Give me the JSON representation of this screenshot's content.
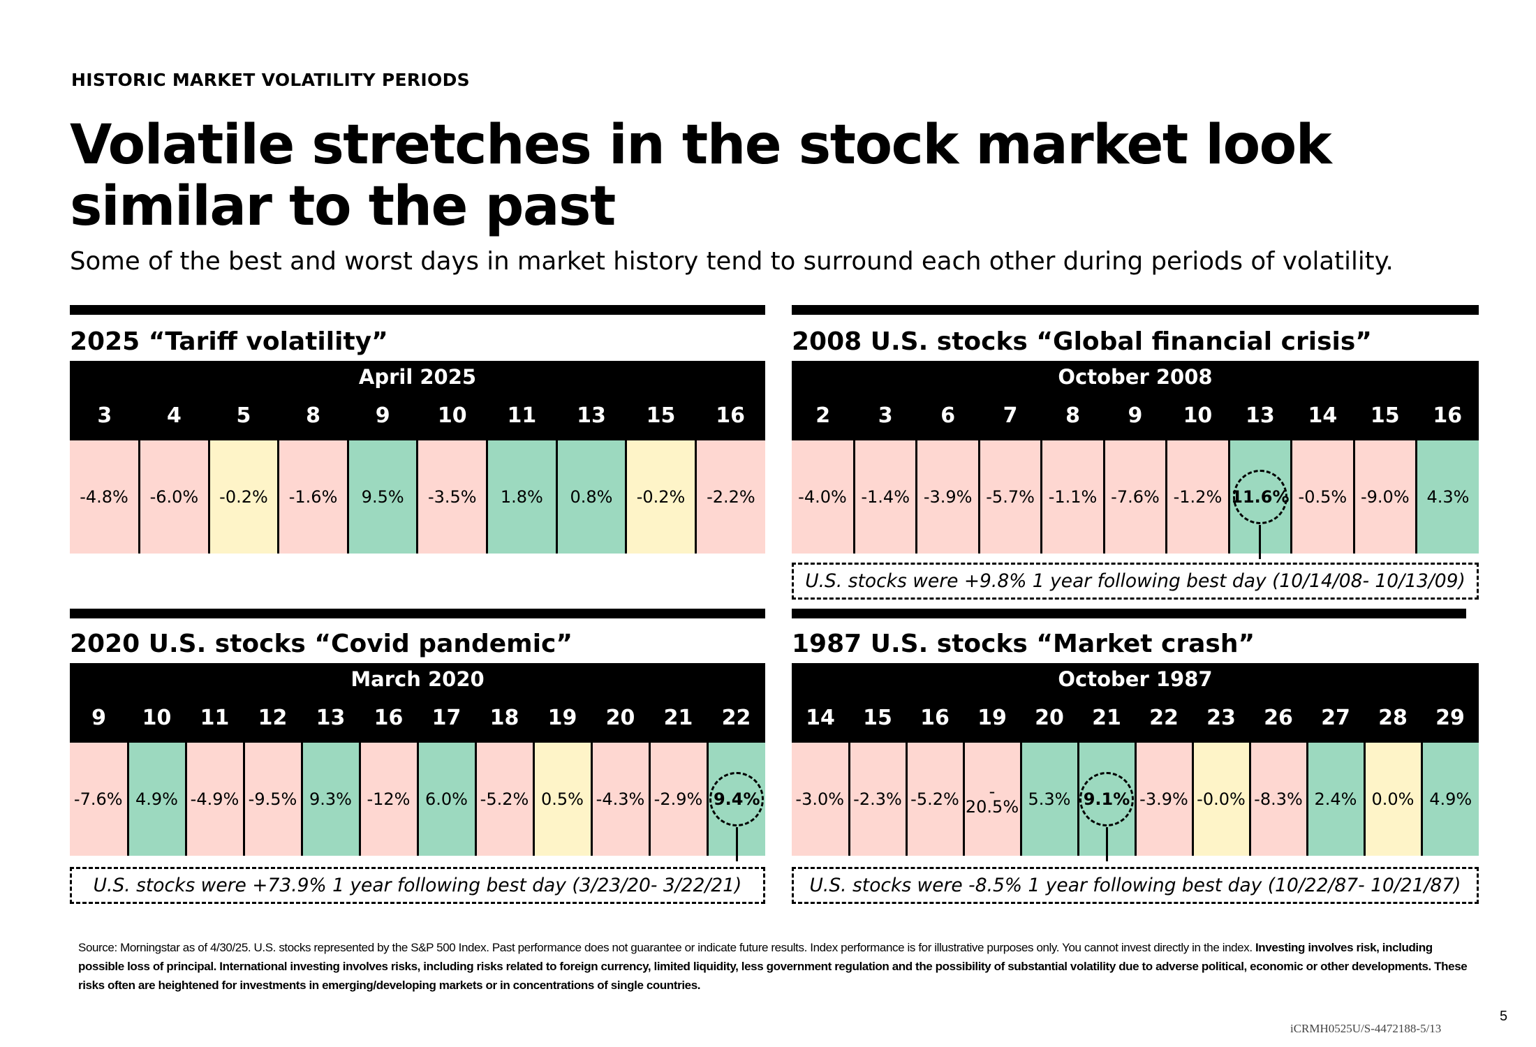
{
  "header": {
    "eyebrow": "HISTORIC MARKET VOLATILITY PERIODS",
    "title": "Volatile stretches in the stock market look similar to the past",
    "subtitle": "Some of the best and worst days in market history tend to surround each other during periods of volatility."
  },
  "colors": {
    "negative": "#fed7d1",
    "positive": "#9cd9bf",
    "flat": "#fef4c8",
    "header": "#000000"
  },
  "panels": [
    {
      "id": "2025",
      "title": "2025 “Tariff volatility”",
      "month": "April 2025",
      "days": [
        "3",
        "4",
        "5",
        "8",
        "9",
        "10",
        "11",
        "13",
        "15",
        "16"
      ],
      "values": [
        "-4.8%",
        "-6.0%",
        "-0.2%",
        "-1.6%",
        "9.5%",
        "-3.5%",
        "1.8%",
        "0.8%",
        "-0.2%",
        "-2.2%"
      ],
      "tones": [
        "neg",
        "neg",
        "flat",
        "neg",
        "pos",
        "neg",
        "pos",
        "pos",
        "flat",
        "neg"
      ],
      "best_index": -1,
      "note": ""
    },
    {
      "id": "2008",
      "title": "2008 U.S. stocks “Global financial crisis”",
      "month": "October 2008",
      "days": [
        "2",
        "3",
        "6",
        "7",
        "8",
        "9",
        "10",
        "13",
        "14",
        "15",
        "16"
      ],
      "values": [
        "-4.0%",
        "-1.4%",
        "-3.9%",
        "-5.7%",
        "-1.1%",
        "-7.6%",
        "-1.2%",
        "11.6%",
        "-0.5%",
        "-9.0%",
        "4.3%"
      ],
      "tones": [
        "neg",
        "neg",
        "neg",
        "neg",
        "neg",
        "neg",
        "neg",
        "pos",
        "neg",
        "neg",
        "pos"
      ],
      "best_index": 7,
      "note": "U.S. stocks were +9.8% 1 year following best day (10/14/08- 10/13/09)"
    },
    {
      "id": "2020",
      "title": "2020 U.S. stocks “Covid pandemic”",
      "month": "March 2020",
      "days": [
        "9",
        "10",
        "11",
        "12",
        "13",
        "16",
        "17",
        "18",
        "19",
        "20",
        "21",
        "22"
      ],
      "values": [
        "-7.6%",
        "4.9%",
        "-4.9%",
        "-9.5%",
        "9.3%",
        "-12%",
        "6.0%",
        "-5.2%",
        "0.5%",
        "-4.3%",
        "-2.9%",
        "9.4%"
      ],
      "tones": [
        "neg",
        "pos",
        "neg",
        "neg",
        "pos",
        "neg",
        "pos",
        "neg",
        "flat",
        "neg",
        "neg",
        "pos"
      ],
      "best_index": 11,
      "note": "U.S. stocks were +73.9% 1 year following best day (3/23/20- 3/22/21)"
    },
    {
      "id": "1987",
      "title": "1987 U.S. stocks “Market crash”",
      "month": "October 1987",
      "days": [
        "14",
        "15",
        "16",
        "19",
        "20",
        "21",
        "22",
        "23",
        "26",
        "27",
        "28",
        "29"
      ],
      "values": [
        "-3.0%",
        "-2.3%",
        "-5.2%",
        "-20.5%",
        "5.3%",
        "9.1%",
        "-3.9%",
        "-0.0%",
        "-8.3%",
        "2.4%",
        "0.0%",
        "4.9%"
      ],
      "tones": [
        "neg",
        "neg",
        "neg",
        "neg",
        "pos",
        "pos",
        "neg",
        "flat",
        "neg",
        "pos",
        "flat",
        "pos"
      ],
      "best_index": 5,
      "note": "U.S. stocks were -8.5% 1 year following best day (10/22/87- 10/21/87)"
    }
  ],
  "footnote": {
    "plain": "Source: Morningstar as of 4/30/25. U.S. stocks represented by the S&P 500 Index. Past performance does not guarantee or indicate future results. Index performance is for illustrative purposes only. You cannot invest directly in the index. ",
    "bold": "Investing involves risk, including possible loss of principal. International investing involves risks, including risks related to foreign currency, limited liquidity, less government regulation and the possibility of substantial volatility due to adverse political, economic or other developments. These risks often are heightened for investments in emerging/developing markets or in concentrations of single countries."
  },
  "page_number": "5",
  "doc_code": "iCRMH0525U/S-4472188-5/13"
}
